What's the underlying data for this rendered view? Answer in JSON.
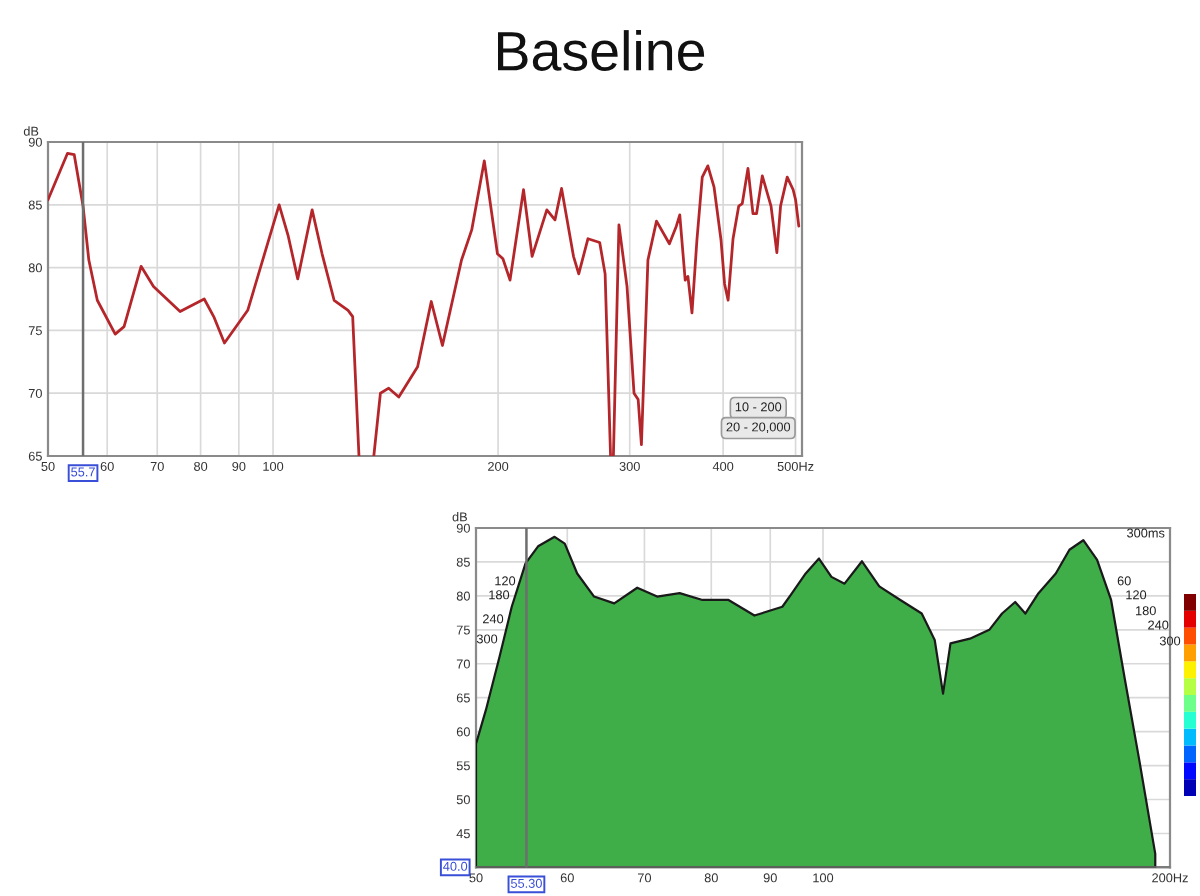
{
  "chart_data": [
    {
      "type": "line",
      "title": "Baseline",
      "ylabel": "dB",
      "x": [
        50,
        53.1,
        54.2,
        55.7,
        56.7,
        58.2,
        61.5,
        63.2,
        66.6,
        69.2,
        75.1,
        80.9,
        83.3,
        86.1,
        92.5,
        101.9,
        104.8,
        107.9,
        112.8,
        116.3,
        120.7,
        126.0,
        127.8,
        130.3,
        133,
        136.4,
        139.2,
        142.8,
        147.3,
        156.1,
        162.8,
        168.5,
        178.7,
        184.4,
        191.7,
        199.6,
        203.0,
        207.5,
        216.3,
        222.1,
        232.4,
        238.3,
        243.2,
        252.3,
        256.4,
        263.8,
        273.5,
        278.1,
        282.8,
        284,
        285.3,
        290.2,
        297.5,
        304.0,
        307.9,
        311.0,
        317.3,
        325.8,
        339.0,
        346.3,
        350.0,
        355.9,
        358.9,
        363.4,
        369.0,
        375.1,
        381.6,
        389.0,
        397.4,
        401.8,
        406.2,
        412.4,
        419.7,
        424.3,
        431.8,
        438.5,
        443.4,
        451.3,
        463.6,
        472.0,
        477.4,
        487.3,
        496.3,
        500.0,
        505
      ],
      "series": [
        {
          "color": "#b5262b",
          "values": [
            85.4,
            89.1,
            89.0,
            84.9,
            80.6,
            77.4,
            74.7,
            75.3,
            80.1,
            78.5,
            76.5,
            77.5,
            76.1,
            74.0,
            76.6,
            85.0,
            82.5,
            79.1,
            84.6,
            81.1,
            77.4,
            76.6,
            76.1,
            65.0,
            null,
            65.0,
            70.0,
            70.4,
            69.7,
            72.1,
            77.3,
            73.8,
            80.6,
            83.0,
            88.5,
            81.1,
            80.7,
            79.0,
            86.2,
            80.9,
            84.6,
            83.8,
            86.3,
            80.9,
            79.5,
            82.3,
            82.0,
            79.5,
            65.0,
            null,
            65.0,
            83.4,
            78.5,
            70.0,
            69.5,
            65.9,
            80.6,
            83.7,
            81.9,
            83.3,
            84.2,
            79.0,
            79.3,
            76.4,
            82.2,
            87.2,
            88.1,
            86.4,
            82.2,
            78.7,
            77.4,
            82.3,
            84.9,
            85.1,
            87.9,
            84.3,
            84.3,
            87.3,
            84.9,
            81.2,
            84.9,
            87.2,
            86.2,
            85.4,
            83.3
          ]
        }
      ],
      "xlim": [
        50,
        510
      ],
      "ylim": [
        65,
        90
      ],
      "xticks": [
        50,
        60,
        70,
        80,
        90,
        100,
        200,
        300,
        400,
        {
          "value": 500,
          "label": "500Hz"
        }
      ],
      "yticks": [
        65,
        70,
        75,
        80,
        85,
        90
      ],
      "log": "x",
      "grid": true,
      "line_style": "solid",
      "ref_lines": [
        {
          "axis": "x",
          "value": 55.7,
          "label": "55.7"
        }
      ],
      "annotations": [
        "10 - 200",
        "20 - 20,000"
      ]
    },
    {
      "type": "area",
      "ylabel": "dB",
      "x": [
        50,
        51.0,
        52.4,
        53.7,
        55.2,
        56.6,
        58.5,
        59.7,
        61.2,
        63.3,
        65.9,
        69.0,
        71.8,
        75.1,
        78.6,
        82.8,
        87.2,
        92.2,
        94.0,
        96.6,
        99.2,
        101.7,
        104.4,
        108.1,
        111.9,
        116.7,
        121.8,
        125.0,
        127.1,
        129.0,
        134.1,
        139.4,
        143.0,
        146.8,
        149.8,
        153.8,
        159.2,
        163.6,
        168.2,
        172.9,
        177.8,
        182.8,
        188.1,
        194.2
      ],
      "series": [
        {
          "color": "#3fae49",
          "values": [
            58.2,
            63.2,
            71.0,
            78.4,
            84.8,
            87.3,
            88.7,
            87.7,
            83.3,
            79.9,
            78.9,
            81.2,
            79.9,
            80.4,
            79.4,
            79.4,
            77.1,
            78.4,
            80.4,
            83.3,
            85.5,
            82.8,
            81.8,
            85.1,
            81.4,
            79.4,
            77.4,
            73.5,
            65.6,
            73.0,
            73.7,
            75.0,
            77.4,
            79.1,
            77.4,
            80.4,
            83.3,
            86.8,
            88.2,
            85.3,
            79.4,
            67.6,
            55.8,
            42.0
          ]
        }
      ],
      "xlim": [
        50,
        200
      ],
      "ylim": [
        40,
        90
      ],
      "xticks": [
        50,
        60,
        70,
        80,
        90,
        100,
        {
          "value": 200,
          "label": "200Hz"
        }
      ],
      "yticks": [
        45,
        50,
        55,
        60,
        65,
        70,
        75,
        80,
        85,
        90
      ],
      "log": "x",
      "grid": true,
      "ref_lines": [
        {
          "axis": "x",
          "value": 55.3,
          "label": "55.30"
        },
        {
          "axis": "y",
          "value": 40,
          "label": "40.0"
        }
      ],
      "annotations": [
        "120",
        "180",
        "240",
        "300",
        "60",
        "120",
        "180",
        "240",
        "300",
        "300ms"
      ]
    }
  ]
}
